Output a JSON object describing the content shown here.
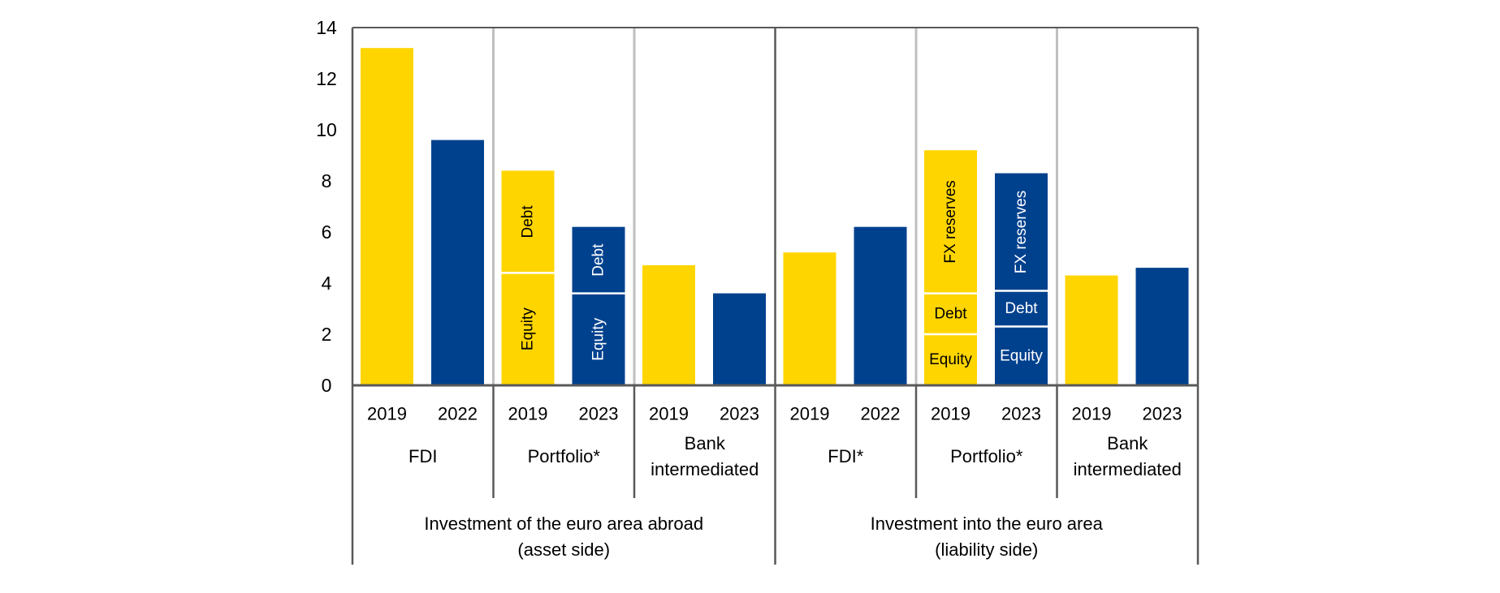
{
  "chart_data": {
    "type": "bar",
    "title": "",
    "xlabel": "",
    "ylabel": "",
    "ylim": [
      0,
      14
    ],
    "yticks": [
      0,
      2,
      4,
      6,
      8,
      10,
      12,
      14
    ],
    "grid": false,
    "legend": "none",
    "colors": {
      "y2019": "#FFD500",
      "recent": "#00418E",
      "year_period_1": "#FFD500",
      "year_period_2": "#00418E"
    },
    "groups": [
      {
        "label": "Investment of the euro area abroad\n(asset side)",
        "label_lines": [
          "Investment of the euro area abroad",
          "(asset side)"
        ],
        "subgroups": [
          {
            "label_lines": [
              "FDI"
            ],
            "bars": [
              {
                "year": "2019",
                "value": 13.2,
                "color": "#FFD500",
                "segments": []
              },
              {
                "year": "2022",
                "value": 9.6,
                "color": "#00418E",
                "segments": []
              }
            ]
          },
          {
            "label_lines": [
              "Portfolio*"
            ],
            "bars": [
              {
                "year": "2019",
                "value": 8.4,
                "color": "#FFD500",
                "segments": [
                  {
                    "label": "Equity",
                    "value": 4.4
                  },
                  {
                    "label": "Debt",
                    "value": 4.0
                  }
                ]
              },
              {
                "year": "2023",
                "value": 6.2,
                "color": "#00418E",
                "segments": [
                  {
                    "label": "Equity",
                    "value": 3.6
                  },
                  {
                    "label": "Debt",
                    "value": 2.6
                  }
                ]
              }
            ]
          },
          {
            "label_lines": [
              "Bank",
              "intermediated"
            ],
            "bars": [
              {
                "year": "2019",
                "value": 4.7,
                "color": "#FFD500",
                "segments": []
              },
              {
                "year": "2023",
                "value": 3.6,
                "color": "#00418E",
                "segments": []
              }
            ]
          }
        ]
      },
      {
        "label": "Investment into the euro area\n(liability side)",
        "label_lines": [
          "Investment into the euro area",
          "(liability side)"
        ],
        "subgroups": [
          {
            "label_lines": [
              "FDI*"
            ],
            "bars": [
              {
                "year": "2019",
                "value": 5.2,
                "color": "#FFD500",
                "segments": []
              },
              {
                "year": "2022",
                "value": 6.2,
                "color": "#00418E",
                "segments": []
              }
            ]
          },
          {
            "label_lines": [
              "Portfolio*"
            ],
            "bars": [
              {
                "year": "2019",
                "value": 9.2,
                "color": "#FFD500",
                "segments": [
                  {
                    "label": "Equity",
                    "value": 2.0
                  },
                  {
                    "label": "Debt",
                    "value": 1.6
                  },
                  {
                    "label": "FX reserves",
                    "value": 5.6
                  }
                ]
              },
              {
                "year": "2023",
                "value": 8.3,
                "color": "#00418E",
                "segments": [
                  {
                    "label": "Equity",
                    "value": 2.3
                  },
                  {
                    "label": "Debt",
                    "value": 1.4
                  },
                  {
                    "label": "FX reserves",
                    "value": 4.6
                  }
                ]
              }
            ]
          },
          {
            "label_lines": [
              "Bank",
              "intermediated"
            ],
            "bars": [
              {
                "year": "2019",
                "value": 4.3,
                "color": "#FFD500",
                "segments": []
              },
              {
                "year": "2023",
                "value": 4.6,
                "color": "#00418E",
                "segments": []
              }
            ]
          }
        ]
      }
    ]
  }
}
